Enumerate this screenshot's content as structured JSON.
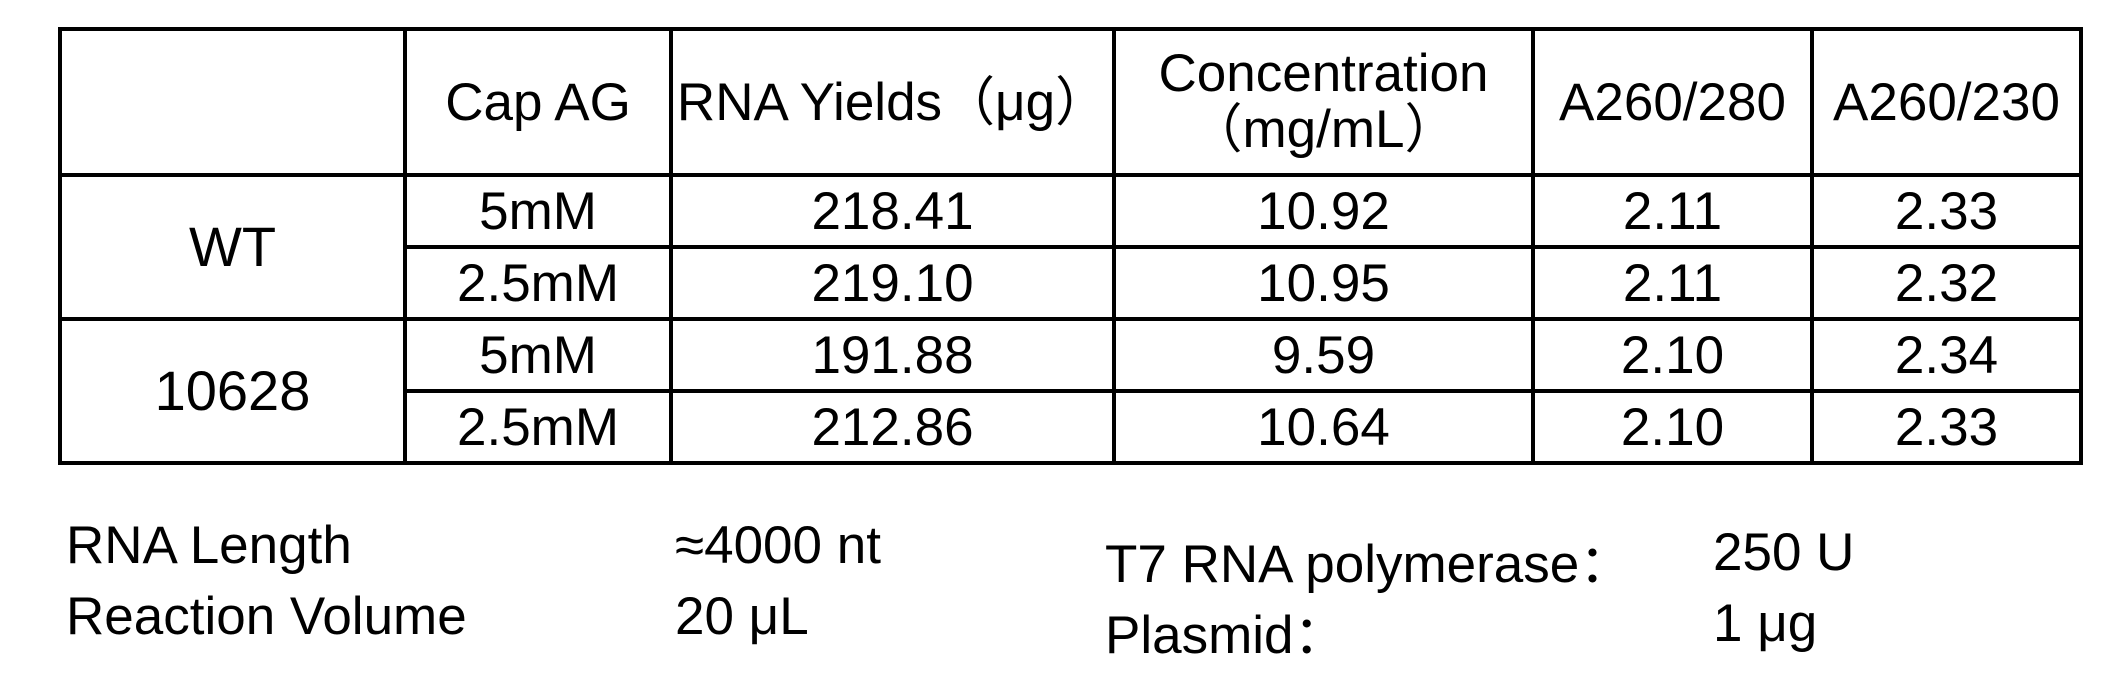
{
  "table": {
    "headers": [
      "",
      "Cap AG",
      "RNA Yields（μg）",
      "Concentration",
      "A260/280",
      "A260/230"
    ],
    "concentration_unit": "（mg/mL）",
    "groups": [
      {
        "name": "WT",
        "rows": [
          {
            "cap_ag": "5mM",
            "rna_yields": "218.41",
            "concentration": "10.92",
            "a260_280": "2.11",
            "a260_230": "2.33"
          },
          {
            "cap_ag": "2.5mM",
            "rna_yields": "219.10",
            "concentration": "10.95",
            "a260_280": "2.11",
            "a260_230": "2.32"
          }
        ]
      },
      {
        "name": "10628",
        "rows": [
          {
            "cap_ag": "5mM",
            "rna_yields": "191.88",
            "concentration": "9.59",
            "a260_280": "2.10",
            "a260_230": "2.34"
          },
          {
            "cap_ag": "2.5mM",
            "rna_yields": "212.86",
            "concentration": "10.64",
            "a260_280": "2.10",
            "a260_230": "2.33"
          }
        ]
      }
    ]
  },
  "conditions": {
    "rna_length_label": "RNA Length",
    "rna_length_value": "≈4000 nt",
    "reaction_volume_label": "Reaction Volume",
    "reaction_volume_value": "20 μL",
    "polymerase_label": "T7 RNA polymerase：",
    "polymerase_value": "250 U",
    "plasmid_label": "Plasmid：",
    "plasmid_value": "1 μg"
  }
}
